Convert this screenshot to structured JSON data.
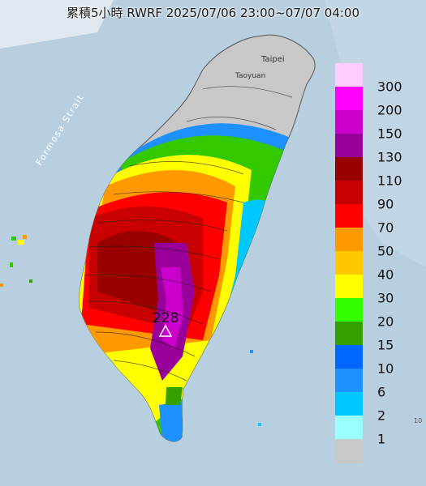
{
  "title": "累積5小時 RWRF 2025/07/06 23:00~07/07 04:00",
  "map_labels": {
    "strait": "Formosa Strait",
    "taipei": "Taipei",
    "taoyuan": "Taoyuan",
    "max_value": "228",
    "edge_mark": "10"
  },
  "legend": {
    "colors": [
      "#ffccff",
      "#ff00ff",
      "#cc00cc",
      "#990099",
      "#990000",
      "#c80000",
      "#ff0000",
      "#ff9900",
      "#ffc800",
      "#ffff00",
      "#33ff00",
      "#33a000",
      "#0066ff",
      "#1e90ff",
      "#00c8ff",
      "#99ffff",
      "#c8c8c8"
    ],
    "labels": [
      "300",
      "200",
      "150",
      "130",
      "110",
      "90",
      "70",
      "50",
      "40",
      "30",
      "20",
      "15",
      "10",
      "6",
      "2",
      "1"
    ]
  }
}
